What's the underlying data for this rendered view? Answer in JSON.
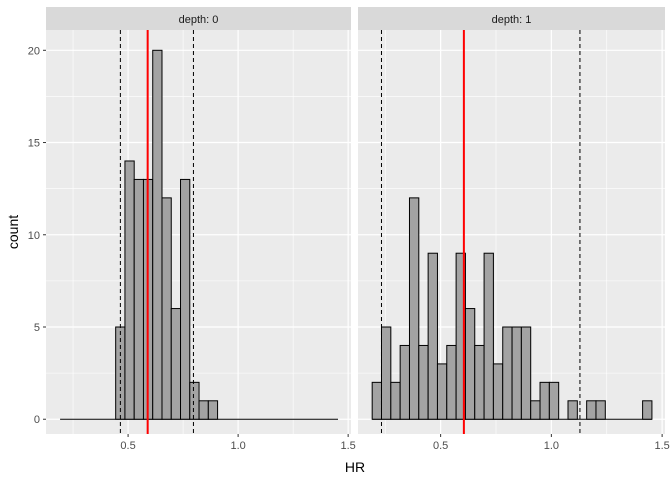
{
  "chart_data": {
    "type": "bar",
    "xlabel": "HR",
    "ylabel": "count",
    "xlim": [
      0.127,
      1.513
    ],
    "ylim": [
      -0.8,
      21.1
    ],
    "x_ticks": [
      "0.5",
      "1.0",
      "1.5"
    ],
    "y_ticks": [
      "0",
      "5",
      "10",
      "15",
      "20"
    ],
    "grid": true,
    "bin_start": 0.191,
    "bin_width": 0.0421,
    "colors": {
      "fill": "#a3a3a3",
      "outline": "#000000",
      "mean_line": "#ff0000",
      "interval_lines": "#000000",
      "panel_bg": "#ebebeb",
      "strip_bg": "#d9d9d9"
    },
    "panels": [
      {
        "strip": "depth: 0",
        "counts": [
          0,
          0,
          0,
          0,
          0,
          0,
          5,
          14,
          13,
          13,
          20,
          12,
          6,
          13,
          2,
          1,
          1,
          0,
          0,
          0,
          0,
          0,
          0,
          0,
          0,
          0,
          0,
          0,
          0,
          0
        ],
        "mean_line": 0.589,
        "dashed_lines": [
          0.465,
          0.797
        ]
      },
      {
        "strip": "depth: 1",
        "counts": [
          2,
          5,
          2,
          4,
          12,
          4,
          9,
          3,
          4,
          9,
          6,
          4,
          9,
          3,
          5,
          5,
          5,
          1,
          2,
          2,
          0,
          1,
          0,
          1,
          1,
          0,
          0,
          0,
          0,
          1
        ],
        "mean_line": 0.605,
        "dashed_lines": [
          0.233,
          1.129
        ]
      }
    ]
  }
}
